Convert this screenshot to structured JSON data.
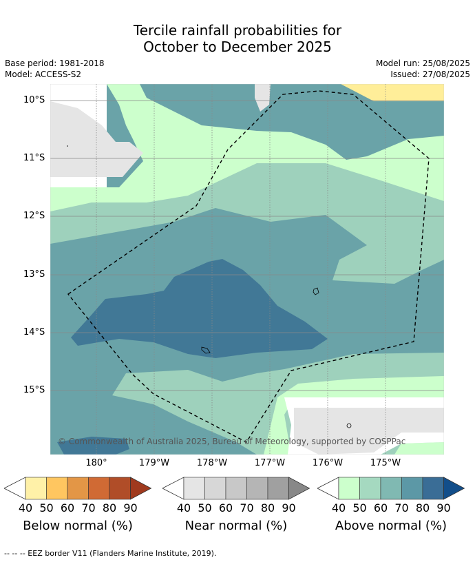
{
  "title": {
    "line1": "Tercile rainfall probabilities for",
    "line2": "October to December 2025"
  },
  "meta": {
    "base_period": "Base period: 1981-2018",
    "model": "Model: ACCESS-S2",
    "model_run": "Model run: 25/08/2025",
    "issued": "Issued: 27/08/2025"
  },
  "map": {
    "latitudes": [
      "10°S",
      "11°S",
      "12°S",
      "13°S",
      "14°S",
      "15°S"
    ],
    "longitudes": [
      "180°",
      "179°W",
      "178°W",
      "177°W",
      "176°W",
      "175°W"
    ],
    "copyright": "© Commonwealth of Australia 2025, Bureau of Meteorology, supported by COSPPac",
    "colors": {
      "above_40": "#ccffcc",
      "above_50": "#9ed1bc",
      "above_60": "#6aa3a8",
      "above_70": "#417896",
      "near": "#e5e5e5",
      "below_40": "#ffee99"
    }
  },
  "legends": [
    {
      "label": "Below normal (%)",
      "ticks": [
        "40",
        "50",
        "60",
        "70",
        "80",
        "90"
      ],
      "colors": [
        "#fff1a8",
        "#ffc660",
        "#e39646",
        "#d06a34",
        "#b04d28",
        "#a03a1e"
      ]
    },
    {
      "label": "Near normal (%)",
      "ticks": [
        "40",
        "50",
        "60",
        "70",
        "80",
        "90"
      ],
      "colors": [
        "#e5e5e5",
        "#d7d7d7",
        "#c8c8c8",
        "#b5b5b5",
        "#a0a0a0",
        "#888888"
      ]
    },
    {
      "label": "Above normal (%)",
      "ticks": [
        "40",
        "50",
        "60",
        "70",
        "80",
        "90"
      ],
      "colors": [
        "#ccffcc",
        "#a5d9c0",
        "#80b9b2",
        "#5c98a6",
        "#3a6d96",
        "#124e8a"
      ]
    }
  ],
  "footer": "--  --  -- EEZ border V11 (Flanders Marine Institute, 2019)."
}
